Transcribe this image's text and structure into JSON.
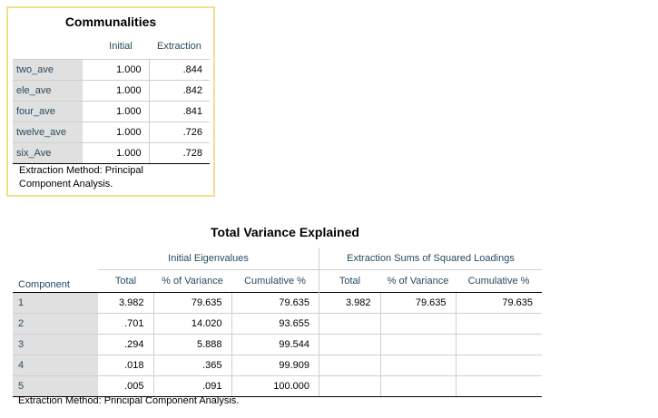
{
  "communalities": {
    "title": "Communalities",
    "headers": {
      "initial": "Initial",
      "extraction": "Extraction"
    },
    "rows": [
      {
        "label": "two_ave",
        "initial": "1.000",
        "extraction": ".844"
      },
      {
        "label": "ele_ave",
        "initial": "1.000",
        "extraction": ".842"
      },
      {
        "label": "four_ave",
        "initial": "1.000",
        "extraction": ".841"
      },
      {
        "label": "twelve_ave",
        "initial": "1.000",
        "extraction": ".726"
      },
      {
        "label": "six_Ave",
        "initial": "1.000",
        "extraction": ".728"
      }
    ],
    "footnote_line1": "Extraction Method: Principal",
    "footnote_line2": "Component Analysis."
  },
  "total_variance": {
    "title": "Total Variance Explained",
    "group_headers": {
      "initial": "Initial Eigenvalues",
      "extraction": "Extraction Sums of Squared Loadings"
    },
    "headers": {
      "component": "Component",
      "total": "Total",
      "pct_variance": "% of Variance",
      "cumulative": "Cumulative %",
      "ext_total": "Total",
      "ext_pct_variance": "% of Variance",
      "ext_cumulative": "Cumulative %"
    },
    "rows": [
      {
        "component": "1",
        "total": "3.982",
        "pct": "79.635",
        "cum": "79.635",
        "etotal": "3.982",
        "epct": "79.635",
        "ecum": "79.635"
      },
      {
        "component": "2",
        "total": ".701",
        "pct": "14.020",
        "cum": "93.655",
        "etotal": "",
        "epct": "",
        "ecum": ""
      },
      {
        "component": "3",
        "total": ".294",
        "pct": "5.888",
        "cum": "99.544",
        "etotal": "",
        "epct": "",
        "ecum": ""
      },
      {
        "component": "4",
        "total": ".018",
        "pct": ".365",
        "cum": "99.909",
        "etotal": "",
        "epct": "",
        "ecum": ""
      },
      {
        "component": "5",
        "total": ".005",
        "pct": ".091",
        "cum": "100.000",
        "etotal": "",
        "epct": "",
        "ecum": ""
      }
    ],
    "footnote": "Extraction Method: Principal Component Analysis."
  }
}
